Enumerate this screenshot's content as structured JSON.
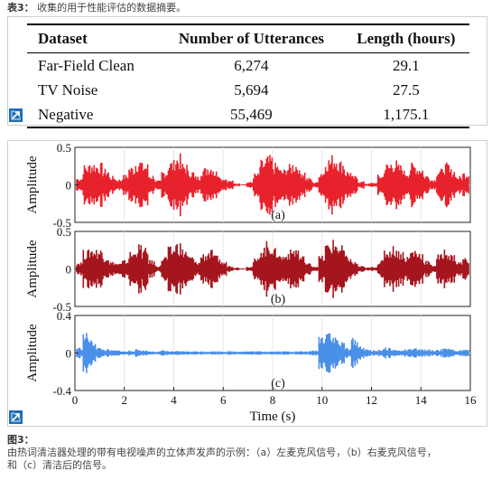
{
  "table_caption": {
    "prefix": "表3：",
    "text": "收集的用于性能评估的数据摘要。"
  },
  "table": {
    "headers": [
      "Dataset",
      "Number of Utterances",
      "Length (hours)"
    ],
    "rows": [
      [
        "Far-Field Clean",
        "6,274",
        "29.1"
      ],
      [
        "TV Noise",
        "5,694",
        "27.5"
      ],
      [
        "Negative",
        "55,469",
        "1,175.1"
      ]
    ]
  },
  "expand_icon": "expand-arrow-icon",
  "figure_caption": {
    "title": "图3：",
    "line1": "由热词清洁器处理的带有电视噪声的立体声发声的示例：（a）左麦克风信号，（b）右麦克风信号，",
    "line2": "和（c）清洁后的信号。"
  },
  "chart_data": [
    {
      "type": "line",
      "label": "(a)",
      "ylabel": "Amplitude",
      "ylim": [
        -0.5,
        0.5
      ],
      "yticks": [
        "0.5",
        "0",
        "-0.5"
      ],
      "color": "#e8222c",
      "series": [
        {
          "values": [
            0.1,
            0.28,
            0.32,
            0.3,
            0.22,
            0.12,
            0.08,
            0.14,
            0.26,
            0.36,
            0.3,
            0.14,
            0.06,
            0.2,
            0.34,
            0.42,
            0.3,
            0.2,
            0.12,
            0.24,
            0.28,
            0.2,
            0.1,
            0.06,
            0.02,
            0.01,
            0.04,
            0.16,
            0.34,
            0.4,
            0.3,
            0.22,
            0.28,
            0.32,
            0.2,
            0.1,
            0.04,
            0.2,
            0.38,
            0.42,
            0.34,
            0.2,
            0.12,
            0.05,
            0.02,
            0.03,
            0.14,
            0.3,
            0.34,
            0.28,
            0.2,
            0.3,
            0.26,
            0.14,
            0.08,
            0.22,
            0.3,
            0.22,
            0.12,
            0.18
          ]
        }
      ]
    },
    {
      "type": "line",
      "label": "(b)",
      "ylabel": "Amplitude",
      "ylim": [
        -0.5,
        0.5
      ],
      "yticks": [
        "0.5",
        "0",
        "-0.5"
      ],
      "color": "#a5151d",
      "series": [
        {
          "values": [
            0.1,
            0.26,
            0.3,
            0.28,
            0.2,
            0.1,
            0.08,
            0.12,
            0.24,
            0.34,
            0.28,
            0.12,
            0.05,
            0.18,
            0.3,
            0.38,
            0.28,
            0.18,
            0.1,
            0.22,
            0.26,
            0.18,
            0.1,
            0.05,
            0.02,
            0.01,
            0.04,
            0.14,
            0.32,
            0.38,
            0.28,
            0.2,
            0.26,
            0.3,
            0.18,
            0.08,
            0.04,
            0.18,
            0.36,
            0.4,
            0.32,
            0.18,
            0.1,
            0.04,
            0.02,
            0.03,
            0.12,
            0.28,
            0.32,
            0.26,
            0.18,
            0.28,
            0.24,
            0.12,
            0.06,
            0.2,
            0.28,
            0.2,
            0.1,
            0.16
          ]
        }
      ]
    },
    {
      "type": "line",
      "label": "(c)",
      "ylabel": "Amplitude",
      "ylim": [
        -0.4,
        0.4
      ],
      "yticks": [
        "0.4",
        "0",
        "-0.4"
      ],
      "color": "#4a8fe8",
      "xlabel": "Time (s)",
      "xlim": [
        0,
        16
      ],
      "xticks": [
        "0",
        "2",
        "4",
        "6",
        "8",
        "10",
        "12",
        "14",
        "16"
      ],
      "series": [
        {
          "values": [
            0.06,
            0.22,
            0.14,
            0.06,
            0.04,
            0.03,
            0.03,
            0.02,
            0.03,
            0.04,
            0.03,
            0.02,
            0.02,
            0.03,
            0.02,
            0.02,
            0.02,
            0.02,
            0.02,
            0.02,
            0.02,
            0.02,
            0.02,
            0.02,
            0.02,
            0.02,
            0.02,
            0.02,
            0.02,
            0.02,
            0.02,
            0.02,
            0.02,
            0.02,
            0.02,
            0.02,
            0.03,
            0.2,
            0.28,
            0.18,
            0.12,
            0.06,
            0.16,
            0.08,
            0.04,
            0.03,
            0.04,
            0.06,
            0.04,
            0.03,
            0.04,
            0.05,
            0.04,
            0.04,
            0.03,
            0.04,
            0.05,
            0.04,
            0.03,
            0.04
          ]
        }
      ]
    }
  ]
}
